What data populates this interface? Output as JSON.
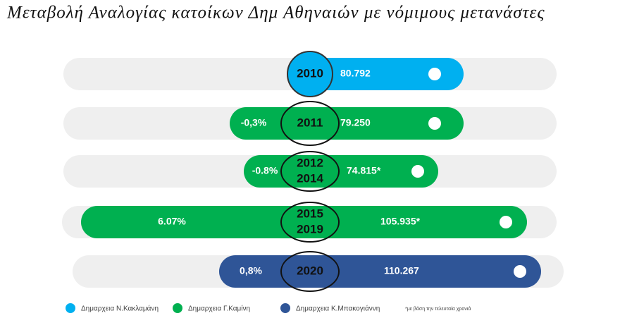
{
  "title": "Μεταβολή Αναλογίας κατοίκων Δημ Αθηναιών με νόμιμους μετανάστες",
  "rows": [
    {
      "period": [
        "2010"
      ],
      "count": "80.792"
    },
    {
      "period": [
        "2011"
      ],
      "change": "-0,3%",
      "count": "79.250"
    },
    {
      "period": [
        "2012",
        "2014"
      ],
      "change": "-0.8%",
      "count": "74.815*"
    },
    {
      "period": [
        "2015",
        "2019"
      ],
      "change": "6.07%",
      "count": "105.935*"
    },
    {
      "period": [
        "2020"
      ],
      "change": "0,8%",
      "count": "110.267"
    }
  ],
  "legend": [
    {
      "name": "Δημαρχεια Ν.Κακλαμάνη",
      "color": "#00b0f0"
    },
    {
      "name": "Δημαρχεια Γ.Καμίνη",
      "color": "#00b050"
    },
    {
      "name": "Δημαρχεια Κ.Μπακογιάννη",
      "color": "#2f5597"
    }
  ],
  "note": "*με βάση την τελευταία χρονιά"
}
